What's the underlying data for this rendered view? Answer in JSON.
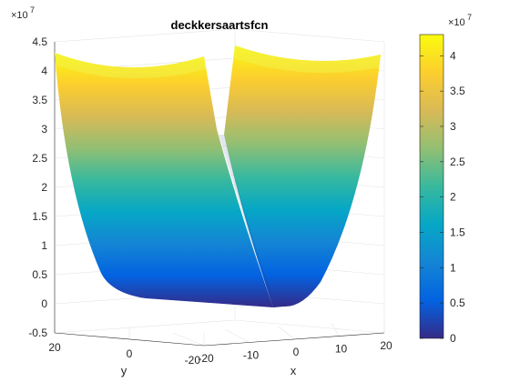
{
  "chart_data": {
    "type": "surface3d",
    "title": "deckkersaartsfcn",
    "xlabel": "x",
    "ylabel": "y",
    "zlabel": "",
    "xlim": [
      -20,
      20
    ],
    "ylim": [
      -20,
      20
    ],
    "zlim": [
      -0.5,
      4.5
    ],
    "x_ticks": [
      "-20",
      "-10",
      "0",
      "10",
      "20"
    ],
    "y_ticks": [
      "20",
      "0",
      "-20"
    ],
    "z_ticks": [
      "-0.5",
      "0",
      "0.5",
      "1",
      "1.5",
      "2",
      "2.5",
      "3",
      "3.5",
      "4",
      "4.5"
    ],
    "z_exponent_label": "×10",
    "z_exponent_power": "7",
    "z_max_value": 43000000,
    "colormap": "parula",
    "colormap_stops": [
      "#352a87",
      "#0363e1",
      "#1485d4",
      "#06a7c6",
      "#38b99e",
      "#92bf73",
      "#d9ba56",
      "#fcce2e",
      "#f9fb0e"
    ],
    "colorbar": {
      "ticks": [
        "0",
        "0.5",
        "1",
        "1.5",
        "2",
        "2.5",
        "3",
        "3.5",
        "4"
      ],
      "tick_values": [
        0,
        0.5,
        1,
        1.5,
        2,
        2.5,
        3,
        3.5,
        4
      ],
      "range": [
        0,
        4.3
      ],
      "exponent_label": "×10",
      "exponent_power": "7"
    },
    "grid": true
  }
}
